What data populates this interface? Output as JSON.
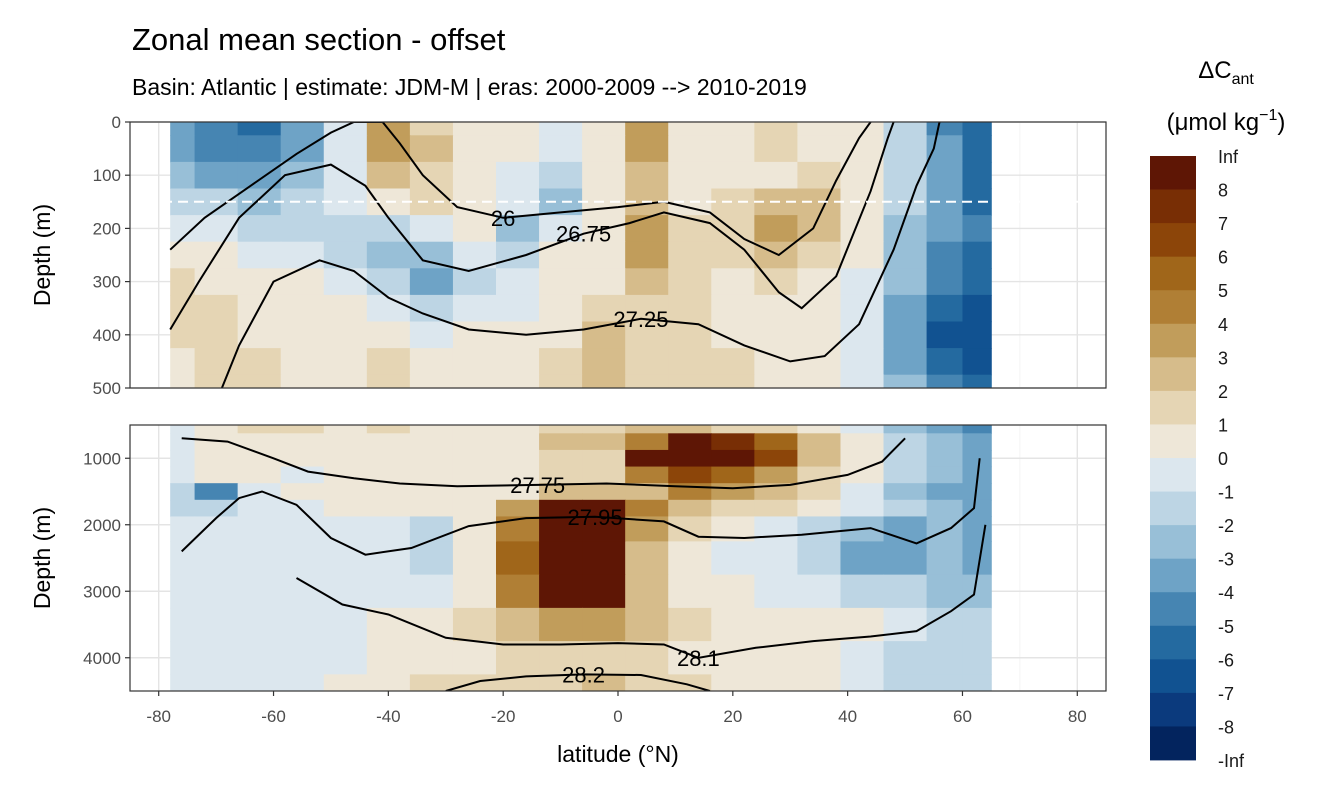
{
  "chart_data": {
    "type": "heatmap",
    "title": "Zonal mean section - offset",
    "subtitle": "Basin: Atlantic | estimate: JDM-M | eras: 2000-2009 --> 2010-2019",
    "xlabel": "latitude (°N)",
    "ylabel": "Depth (m)",
    "xlim": [
      -85,
      85
    ],
    "x_ticks": [
      -80,
      -60,
      -40,
      -20,
      0,
      20,
      40,
      60,
      80
    ],
    "grid": true,
    "legend_position": "right",
    "mixed_layer_reference_depth": 150,
    "panels": [
      {
        "name": "upper",
        "ylim": [
          0,
          500
        ],
        "y_ticks": [
          0,
          100,
          200,
          300,
          400,
          500
        ]
      },
      {
        "name": "lower",
        "ylim": [
          500,
          4500
        ],
        "y_ticks": [
          1000,
          2000,
          3000,
          4000
        ]
      }
    ],
    "x": [
      -77.5,
      -70,
      -62.5,
      -55,
      -47.5,
      -40,
      -32.5,
      -25,
      -17.5,
      -10,
      -2.5,
      5,
      12.5,
      20,
      27.5,
      35,
      42.5,
      50,
      57.5,
      62.5
    ],
    "depth_upper": [
      0,
      50,
      100,
      150,
      200,
      250,
      300,
      350,
      400,
      450,
      500
    ],
    "values_upper": [
      [
        -3,
        -4,
        -5,
        -3,
        0,
        4,
        2,
        1,
        1,
        0,
        1,
        4,
        1,
        1,
        2,
        1,
        1,
        -1,
        -4,
        -5
      ],
      [
        -3,
        -4,
        -4,
        -3,
        0,
        4,
        3,
        1,
        1,
        0,
        1,
        4,
        1,
        1,
        2,
        1,
        1,
        -1,
        -3,
        -5
      ],
      [
        -2,
        -3,
        -3,
        -2,
        0,
        3,
        2,
        1,
        0,
        -1,
        1,
        3,
        1,
        1,
        1,
        2,
        1,
        -1,
        -3,
        -5
      ],
      [
        -1,
        -1,
        -2,
        -1,
        0,
        1,
        2,
        1,
        0,
        -2,
        1,
        3,
        1,
        2,
        3,
        3,
        1,
        -1,
        -3,
        -5
      ],
      [
        0,
        0,
        -1,
        -1,
        -1,
        -1,
        0,
        1,
        -2,
        0,
        1,
        4,
        2,
        2,
        4,
        3,
        1,
        -2,
        -3,
        -4
      ],
      [
        1,
        1,
        0,
        0,
        -1,
        -2,
        -2,
        0,
        -1,
        1,
        1,
        4,
        2,
        2,
        3,
        2,
        1,
        -2,
        -4,
        -5
      ],
      [
        2,
        1,
        1,
        1,
        0,
        -1,
        -3,
        -1,
        0,
        1,
        1,
        3,
        2,
        1,
        2,
        1,
        0,
        -2,
        -4,
        -5
      ],
      [
        2,
        2,
        1,
        1,
        1,
        0,
        -1,
        0,
        0,
        1,
        2,
        2,
        2,
        1,
        1,
        1,
        0,
        -3,
        -5,
        -6
      ],
      [
        2,
        2,
        1,
        1,
        1,
        1,
        0,
        1,
        1,
        1,
        3,
        2,
        2,
        1,
        1,
        1,
        0,
        -3,
        -6,
        -6
      ],
      [
        1,
        2,
        2,
        1,
        1,
        2,
        1,
        1,
        1,
        2,
        3,
        2,
        2,
        2,
        1,
        1,
        0,
        -3,
        -5,
        -6
      ],
      [
        1,
        2,
        2,
        1,
        1,
        2,
        1,
        1,
        1,
        2,
        3,
        2,
        2,
        2,
        1,
        1,
        0,
        -2,
        -4,
        -5
      ]
    ],
    "depth_lower": [
      500,
      750,
      1000,
      1250,
      1500,
      1750,
      2000,
      2500,
      3000,
      3500,
      4000,
      4500
    ],
    "values_lower": [
      [
        0,
        1,
        2,
        2,
        1,
        2,
        1,
        1,
        1,
        2,
        2,
        3,
        3,
        2,
        2,
        1,
        0,
        -2,
        -3,
        -4
      ],
      [
        0,
        1,
        1,
        1,
        1,
        1,
        1,
        1,
        1,
        3,
        3,
        5,
        9,
        8,
        6,
        3,
        1,
        -1,
        -2,
        -3
      ],
      [
        0,
        1,
        1,
        1,
        1,
        1,
        1,
        1,
        1,
        2,
        2,
        9,
        9,
        9,
        7,
        3,
        1,
        -1,
        -2,
        -3
      ],
      [
        0,
        1,
        1,
        0,
        1,
        1,
        1,
        1,
        1,
        2,
        2,
        5,
        7,
        6,
        4,
        2,
        1,
        -1,
        -2,
        -3
      ],
      [
        -1,
        -4,
        0,
        1,
        1,
        1,
        1,
        1,
        1,
        3,
        3,
        3,
        5,
        4,
        3,
        2,
        0,
        -2,
        -3,
        -3
      ],
      [
        -1,
        -1,
        0,
        0,
        1,
        1,
        1,
        1,
        4,
        9,
        9,
        5,
        3,
        2,
        2,
        1,
        0,
        -1,
        -2,
        -3
      ],
      [
        0,
        0,
        0,
        0,
        0,
        0,
        -1,
        1,
        5,
        9,
        9,
        4,
        2,
        1,
        0,
        -1,
        -2,
        -3,
        -2,
        -3
      ],
      [
        0,
        0,
        0,
        0,
        0,
        0,
        -1,
        1,
        6,
        9,
        9,
        3,
        1,
        0,
        0,
        -1,
        -3,
        -3,
        -2,
        -3
      ],
      [
        0,
        0,
        0,
        0,
        0,
        0,
        0,
        1,
        5,
        9,
        9,
        3,
        1,
        1,
        0,
        0,
        -1,
        -1,
        -2,
        -2
      ],
      [
        0,
        0,
        0,
        0,
        0,
        1,
        1,
        2,
        3,
        4,
        4,
        3,
        2,
        1,
        1,
        1,
        1,
        0,
        -1,
        -1
      ],
      [
        0,
        0,
        0,
        0,
        0,
        1,
        1,
        1,
        2,
        2,
        2,
        2,
        1,
        1,
        1,
        1,
        0,
        -1,
        -1,
        -1
      ],
      [
        0,
        0,
        0,
        0,
        1,
        1,
        2,
        2,
        2,
        2,
        3,
        2,
        2,
        1,
        1,
        1,
        0,
        -1,
        -1,
        -1
      ]
    ],
    "contours": [
      {
        "label": "26",
        "points_upper": [
          [
            -78,
            240
          ],
          [
            -72,
            180
          ],
          [
            -64,
            120
          ],
          [
            -56,
            60
          ],
          [
            -50,
            20
          ],
          [
            -46,
            0
          ],
          [
            -41,
            0
          ],
          [
            -38,
            40
          ],
          [
            -34,
            100
          ],
          [
            -28,
            160
          ],
          [
            -20,
            180
          ],
          [
            -10,
            170
          ],
          [
            0,
            160
          ],
          [
            8,
            150
          ],
          [
            16,
            170
          ],
          [
            22,
            220
          ],
          [
            28,
            250
          ],
          [
            34,
            200
          ],
          [
            38,
            110
          ],
          [
            42,
            30
          ],
          [
            44,
            0
          ]
        ]
      },
      {
        "label": "26.75",
        "points_upper": [
          [
            -78,
            390
          ],
          [
            -73,
            300
          ],
          [
            -66,
            180
          ],
          [
            -58,
            100
          ],
          [
            -50,
            80
          ],
          [
            -44,
            120
          ],
          [
            -40,
            180
          ],
          [
            -34,
            260
          ],
          [
            -26,
            280
          ],
          [
            -16,
            250
          ],
          [
            -6,
            210
          ],
          [
            2,
            190
          ],
          [
            8,
            170
          ],
          [
            16,
            190
          ],
          [
            22,
            240
          ],
          [
            28,
            320
          ],
          [
            32,
            350
          ],
          [
            38,
            290
          ],
          [
            44,
            130
          ],
          [
            47,
            30
          ],
          [
            48,
            0
          ]
        ]
      },
      {
        "label": "27.25",
        "points_upper": [
          [
            -69,
            500
          ],
          [
            -66,
            420
          ],
          [
            -60,
            300
          ],
          [
            -52,
            260
          ],
          [
            -46,
            280
          ],
          [
            -40,
            330
          ],
          [
            -34,
            360
          ],
          [
            -26,
            390
          ],
          [
            -16,
            400
          ],
          [
            -6,
            390
          ],
          [
            4,
            370
          ],
          [
            14,
            380
          ],
          [
            22,
            420
          ],
          [
            30,
            450
          ],
          [
            36,
            440
          ],
          [
            42,
            380
          ],
          [
            48,
            240
          ],
          [
            52,
            120
          ],
          [
            55,
            50
          ],
          [
            56,
            0
          ]
        ]
      },
      {
        "label": "27.75",
        "points_lower": [
          [
            -76,
            700
          ],
          [
            -68,
            750
          ],
          [
            -60,
            1000
          ],
          [
            -54,
            1200
          ],
          [
            -46,
            1300
          ],
          [
            -38,
            1380
          ],
          [
            -28,
            1420
          ],
          [
            -14,
            1400
          ],
          [
            -2,
            1380
          ],
          [
            10,
            1420
          ],
          [
            20,
            1450
          ],
          [
            30,
            1400
          ],
          [
            40,
            1250
          ],
          [
            46,
            1050
          ],
          [
            50,
            700
          ]
        ]
      },
      {
        "label": "27.95",
        "points_lower": [
          [
            -76,
            2400
          ],
          [
            -70,
            1900
          ],
          [
            -66,
            1600
          ],
          [
            -62,
            1500
          ],
          [
            -56,
            1700
          ],
          [
            -50,
            2200
          ],
          [
            -44,
            2450
          ],
          [
            -36,
            2350
          ],
          [
            -26,
            2020
          ],
          [
            -16,
            1900
          ],
          [
            -4,
            1880
          ],
          [
            8,
            1950
          ],
          [
            14,
            2180
          ],
          [
            22,
            2200
          ],
          [
            32,
            2150
          ],
          [
            44,
            2050
          ],
          [
            52,
            2280
          ],
          [
            58,
            2050
          ],
          [
            62,
            1750
          ],
          [
            63,
            1000
          ]
        ]
      },
      {
        "label": "28.1",
        "points_lower": [
          [
            -56,
            2800
          ],
          [
            -48,
            3200
          ],
          [
            -40,
            3350
          ],
          [
            -30,
            3700
          ],
          [
            -20,
            3800
          ],
          [
            -10,
            3800
          ],
          [
            0,
            3780
          ],
          [
            8,
            3800
          ],
          [
            14,
            4000
          ],
          [
            24,
            3850
          ],
          [
            34,
            3750
          ],
          [
            44,
            3680
          ],
          [
            52,
            3600
          ],
          [
            58,
            3300
          ],
          [
            62,
            3050
          ],
          [
            64,
            2000
          ]
        ]
      },
      {
        "label": "28.2",
        "points_lower": [
          [
            -30,
            4500
          ],
          [
            -24,
            4350
          ],
          [
            -16,
            4280
          ],
          [
            -6,
            4250
          ],
          [
            4,
            4260
          ],
          [
            12,
            4400
          ],
          [
            16,
            4500
          ]
        ]
      }
    ],
    "legend": {
      "title_main": "ΔC",
      "title_subscript": "ant",
      "unit_prefix": "(μmol kg",
      "unit_superscript": "−1",
      "unit_suffix": ")",
      "breaks": [
        "Inf",
        "8",
        "7",
        "6",
        "5",
        "4",
        "3",
        "2",
        "1",
        "0",
        "-1",
        "-2",
        "-3",
        "-4",
        "-5",
        "-6",
        "-7",
        "-8",
        "-Inf"
      ],
      "colors": [
        "#5e1605",
        "#782e05",
        "#8c4509",
        "#a0661a",
        "#b07f35",
        "#c19d5b",
        "#d6bc8b",
        "#e5d5b4",
        "#eee7d8",
        "#dce7ee",
        "#bdd5e4",
        "#98bfd7",
        "#6ea3c6",
        "#4685b2",
        "#246aa0",
        "#115291",
        "#0b3a7d",
        "#03245e"
      ]
    }
  }
}
